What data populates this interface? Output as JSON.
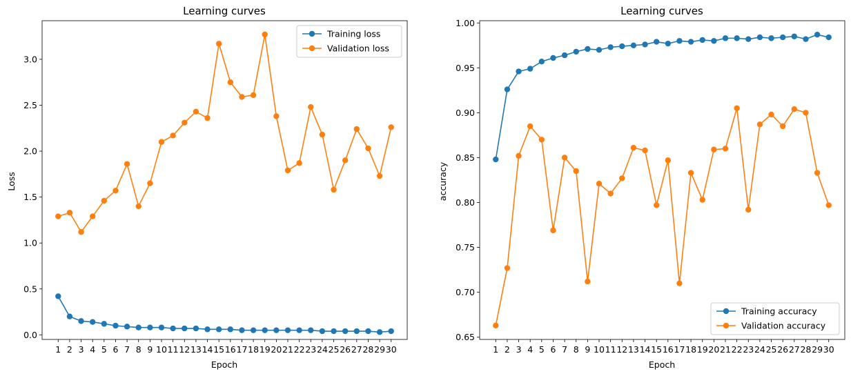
{
  "chart_data": [
    {
      "type": "line",
      "title": "Learning curves",
      "xlabel": "Epoch",
      "ylabel": "Loss",
      "ylim": [
        -0.05,
        3.42
      ],
      "yticks": [
        "0.0",
        "0.5",
        "1.0",
        "1.5",
        "2.0",
        "2.5",
        "3.0"
      ],
      "legend_position": "top-right",
      "x": [
        1,
        2,
        3,
        4,
        5,
        6,
        7,
        8,
        9,
        10,
        11,
        12,
        13,
        14,
        15,
        16,
        17,
        18,
        19,
        20,
        21,
        22,
        23,
        24,
        25,
        26,
        27,
        28,
        29,
        30
      ],
      "x_tick_labels": [
        "1",
        "2",
        "3",
        "4",
        "5",
        "6",
        "7",
        "8",
        "9",
        "10",
        "11",
        "12",
        "13",
        "14",
        "15",
        "16",
        "17",
        "18",
        "19",
        "20",
        "21",
        "22",
        "23",
        "24",
        "25",
        "26",
        "27",
        "28",
        "29",
        "30"
      ],
      "series": [
        {
          "name": "Training loss",
          "color": "#1f77b4",
          "values": [
            0.42,
            0.2,
            0.15,
            0.14,
            0.12,
            0.1,
            0.09,
            0.08,
            0.08,
            0.08,
            0.07,
            0.07,
            0.07,
            0.06,
            0.06,
            0.06,
            0.05,
            0.05,
            0.05,
            0.05,
            0.05,
            0.05,
            0.05,
            0.04,
            0.04,
            0.04,
            0.04,
            0.04,
            0.03,
            0.04
          ]
        },
        {
          "name": "Validation loss",
          "color": "#ff7f0e",
          "values": [
            1.29,
            1.33,
            1.12,
            1.29,
            1.46,
            1.57,
            1.86,
            1.4,
            1.65,
            2.1,
            2.17,
            2.31,
            2.43,
            2.36,
            3.17,
            2.75,
            2.59,
            2.61,
            3.27,
            2.38,
            1.79,
            1.87,
            2.48,
            2.18,
            1.58,
            1.9,
            2.24,
            2.03,
            1.73,
            2.26
          ]
        }
      ]
    },
    {
      "type": "line",
      "title": "Learning curves",
      "xlabel": "Epoch",
      "ylabel": "accuracy",
      "ylim": [
        0.6475,
        1.0025
      ],
      "yticks": [
        "0.65",
        "0.70",
        "0.75",
        "0.80",
        "0.85",
        "0.90",
        "0.95",
        "1.00"
      ],
      "legend_position": "bottom-right",
      "x": [
        1,
        2,
        3,
        4,
        5,
        6,
        7,
        8,
        9,
        10,
        11,
        12,
        13,
        14,
        15,
        16,
        17,
        18,
        19,
        20,
        21,
        22,
        23,
        24,
        25,
        26,
        27,
        28,
        29,
        30
      ],
      "x_tick_labels": [
        "1",
        "2",
        "3",
        "4",
        "5",
        "6",
        "7",
        "8",
        "9",
        "10",
        "11",
        "12",
        "13",
        "14",
        "15",
        "16",
        "17",
        "18",
        "19",
        "20",
        "21",
        "22",
        "23",
        "24",
        "25",
        "26",
        "27",
        "28",
        "29",
        "30"
      ],
      "series": [
        {
          "name": "Training accuracy",
          "color": "#1f77b4",
          "values": [
            0.848,
            0.926,
            0.946,
            0.949,
            0.957,
            0.961,
            0.964,
            0.968,
            0.971,
            0.97,
            0.973,
            0.974,
            0.975,
            0.976,
            0.979,
            0.977,
            0.98,
            0.979,
            0.981,
            0.98,
            0.983,
            0.983,
            0.982,
            0.984,
            0.983,
            0.984,
            0.985,
            0.982,
            0.987,
            0.984
          ]
        },
        {
          "name": "Validation accuracy",
          "color": "#ff7f0e",
          "values": [
            0.663,
            0.727,
            0.852,
            0.885,
            0.87,
            0.769,
            0.85,
            0.835,
            0.712,
            0.821,
            0.81,
            0.827,
            0.861,
            0.858,
            0.797,
            0.847,
            0.71,
            0.833,
            0.803,
            0.859,
            0.86,
            0.905,
            0.792,
            0.887,
            0.898,
            0.885,
            0.904,
            0.9,
            0.833,
            0.797
          ]
        }
      ]
    }
  ]
}
